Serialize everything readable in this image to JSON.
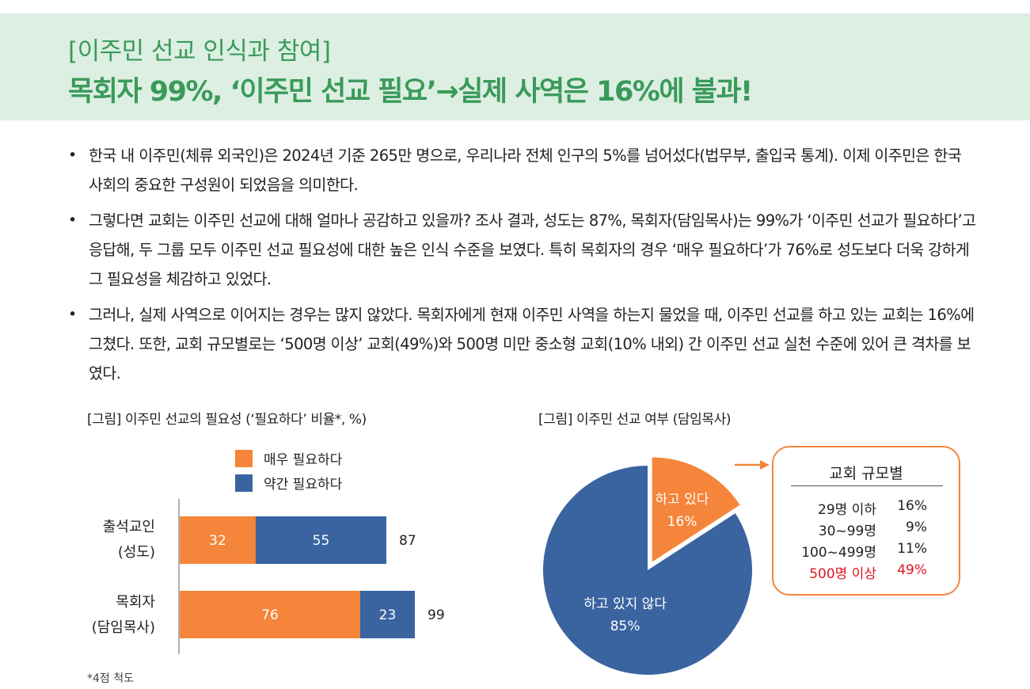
{
  "header": {
    "subtitle": "[이주민 선교 인식과 참여]",
    "title": "목회자 99%, ‘이주민 선교 필요’→실제 사역은 16%에 불과!"
  },
  "bullets": [
    "한국 내 이주민(체류 외국인)은 2024년 기준 265만 명으로, 우리나라 전체 인구의 5%를 넘어섰다(법무부, 출입국 통계). 이제 이주민은 한국 사회의 중요한 구성원이 되었음을 의미한다.",
    "그렇다면 교회는 이주민 선교에 대해 얼마나 공감하고 있을까? 조사 결과, 성도는 87%, 목회자(담임목사)는 99%가 ‘이주민 선교가 필요하다’고 응답해, 두 그룹 모두 이주민 선교 필요성에 대한 높은 인식 수준을 보였다. 특히 목회자의 경우 ‘매우 필요하다’가 76%로 성도보다 더욱 강하게 그 필요성을 체감하고 있었다.",
    "그러나, 실제 사역으로 이어지는 경우는 많지 않았다. 목회자에게 현재 이주민 사역을 하는지 물었을 때, 이주민 선교를 하고 있는 교회는 16%에 그쳤다. 또한, 교회 규모별로는 ‘500명 이상’ 교회(49%)와 500명 미만 중소형 교회(10% 내외) 간 이주민 선교 실천 수준에 있어 큰 격차를 보였다."
  ],
  "bullet_marker": "•",
  "colors": {
    "header_bg": "#dcefe2",
    "header_text": "#3a9a5a",
    "orange": "#f5853a",
    "blue": "#3a64a0",
    "highlight_red": "#e0141e"
  },
  "chart_data": [
    {
      "type": "bar",
      "orientation": "horizontal",
      "stacked": true,
      "title": "[그림] 이주민 선교의 필요성 (‘필요하다’ 비율*, %)",
      "categories": [
        [
          "출석교인",
          "(성도)"
        ],
        [
          "목회자",
          "(담임목사)"
        ]
      ],
      "series": [
        {
          "name": "매우 필요하다",
          "color": "#f5853a",
          "values": [
            32,
            76
          ]
        },
        {
          "name": "약간 필요하다",
          "color": "#3a64a0",
          "values": [
            55,
            23
          ]
        }
      ],
      "totals": [
        87,
        99
      ],
      "xlim": [
        0,
        130
      ],
      "legend_position": "top",
      "grid": false,
      "footnote": "*4점 척도"
    },
    {
      "type": "pie",
      "title": "[그림] 이주민 선교 여부 (담임목사)",
      "slices": [
        {
          "label": "하고 있다",
          "value": 16,
          "value_label": "16%",
          "color": "#f5853a",
          "exploded": true
        },
        {
          "label": "하고 있지 않다",
          "value": 85,
          "value_label": "85%",
          "color": "#3a64a0",
          "exploded": false
        }
      ],
      "callout_table": {
        "title": "교회 규모별",
        "rows": [
          {
            "size": "29명 이하",
            "value": "16%",
            "highlight": false
          },
          {
            "size": "30~99명",
            "value": "9%",
            "highlight": false
          },
          {
            "size": "100~499명",
            "value": "11%",
            "highlight": false
          },
          {
            "size": "500명 이상",
            "value": "49%",
            "highlight": true
          }
        ]
      }
    }
  ]
}
